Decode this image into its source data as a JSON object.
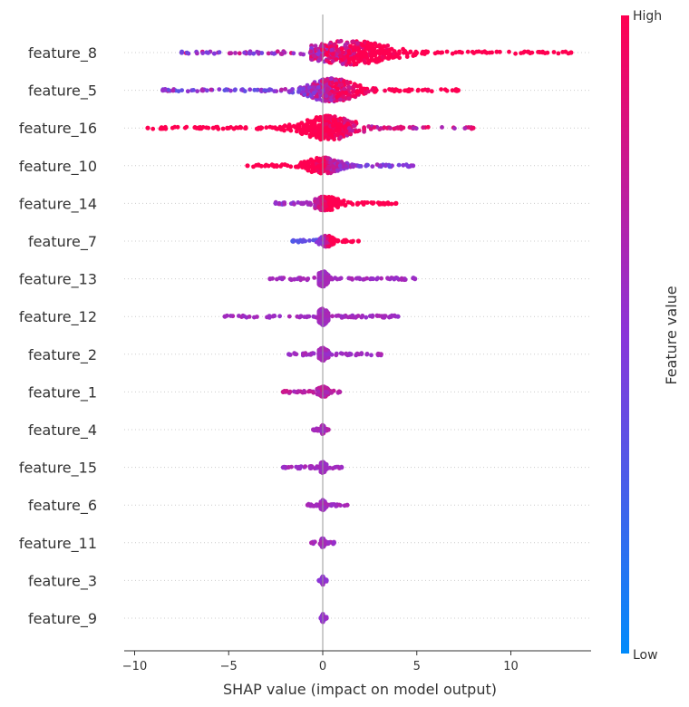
{
  "chart_data": {
    "type": "scatter",
    "subtype": "shap-beeswarm",
    "title": "",
    "xlabel": "SHAP value (impact on model output)",
    "ylabel": "",
    "xlim": [
      -10.4,
      14.2
    ],
    "xticks": [
      -10,
      -5,
      0,
      5,
      10
    ],
    "xtick_labels": [
      "−10",
      "−5",
      "0",
      "5",
      "10"
    ],
    "grid": false,
    "colorbar": {
      "label": "Feature value",
      "high_label": "High",
      "low_label": "Low",
      "low_color": "#008bfb",
      "mid_color": "#8a35d9",
      "high_color": "#ff0051"
    },
    "features": [
      {
        "name": "feature_8",
        "min": -7.5,
        "max": 13.2,
        "core_min": -0.6,
        "core_max": 5.0,
        "peak": 1.5,
        "spread": 2.6,
        "color_trend": 0.35,
        "color_base": 0.45,
        "color_noise": 0.25
      },
      {
        "name": "feature_5",
        "min": -8.5,
        "max": 7.2,
        "core_min": -2.0,
        "core_max": 2.8,
        "peak": 0.5,
        "spread": 1.5,
        "color_trend": 0.3,
        "color_base": 0.3,
        "color_noise": 0.2
      },
      {
        "name": "feature_16",
        "min": -9.3,
        "max": 8.0,
        "core_min": -2.2,
        "core_max": 2.2,
        "peak": 0.3,
        "spread": 1.6,
        "color_trend": -0.3,
        "color_base": 0.55,
        "color_noise": 0.2
      },
      {
        "name": "feature_10",
        "min": -4.0,
        "max": 4.8,
        "core_min": -1.2,
        "core_max": 1.5,
        "peak": 0.0,
        "spread": 1.0,
        "color_trend": -0.4,
        "color_base": 0.4,
        "color_noise": 0.15
      },
      {
        "name": "feature_14",
        "min": -2.5,
        "max": 3.9,
        "core_min": -0.4,
        "core_max": 1.2,
        "peak": 0.2,
        "spread": 0.8,
        "color_trend": 0.45,
        "color_base": 0.5,
        "color_noise": 0.1
      },
      {
        "name": "feature_7",
        "min": -1.6,
        "max": 1.9,
        "core_min": -0.2,
        "core_max": 0.6,
        "peak": 0.2,
        "spread": 0.4,
        "color_trend": 0.45,
        "color_base": 0.3,
        "color_noise": 0.1
      },
      {
        "name": "feature_13",
        "min": -2.8,
        "max": 4.9,
        "core_min": -0.2,
        "core_max": 0.3,
        "peak": 0.0,
        "spread": 0.3,
        "color_trend": 0.0,
        "color_base": 0.1,
        "color_noise": 0.05
      },
      {
        "name": "feature_12",
        "min": -5.2,
        "max": 4.0,
        "core_min": -0.2,
        "core_max": 0.3,
        "peak": 0.0,
        "spread": 0.3,
        "color_trend": 0.0,
        "color_base": 0.1,
        "color_noise": 0.05
      },
      {
        "name": "feature_2",
        "min": -1.8,
        "max": 3.1,
        "core_min": -0.2,
        "core_max": 0.3,
        "peak": 0.0,
        "spread": 0.3,
        "color_trend": 0.0,
        "color_base": 0.1,
        "color_noise": 0.05
      },
      {
        "name": "feature_1",
        "min": -2.1,
        "max": 0.9,
        "core_min": -0.3,
        "core_max": 0.3,
        "peak": 0.0,
        "spread": 0.3,
        "color_trend": 0.0,
        "color_base": 0.2,
        "color_noise": 0.1
      },
      {
        "name": "feature_4",
        "min": -0.5,
        "max": 0.3,
        "core_min": -0.1,
        "core_max": 0.2,
        "peak": 0.0,
        "spread": 0.1,
        "color_trend": 0.0,
        "color_base": 0.15,
        "color_noise": 0.1
      },
      {
        "name": "feature_15",
        "min": -2.1,
        "max": 1.0,
        "core_min": -0.1,
        "core_max": 0.2,
        "peak": 0.0,
        "spread": 0.2,
        "color_trend": 0.0,
        "color_base": 0.1,
        "color_noise": 0.05
      },
      {
        "name": "feature_6",
        "min": -0.8,
        "max": 1.3,
        "core_min": -0.1,
        "core_max": 0.2,
        "peak": 0.0,
        "spread": 0.15,
        "color_trend": 0.0,
        "color_base": 0.1,
        "color_noise": 0.05
      },
      {
        "name": "feature_11",
        "min": -0.6,
        "max": 0.6,
        "core_min": -0.1,
        "core_max": 0.1,
        "peak": 0.0,
        "spread": 0.1,
        "color_trend": 0.0,
        "color_base": 0.1,
        "color_noise": 0.05
      },
      {
        "name": "feature_3",
        "min": -0.2,
        "max": 0.2,
        "core_min": -0.05,
        "core_max": 0.1,
        "peak": 0.0,
        "spread": 0.05,
        "color_trend": 0.0,
        "color_base": 0.05,
        "color_noise": 0.05
      },
      {
        "name": "feature_9",
        "min": -0.1,
        "max": 0.2,
        "core_min": -0.05,
        "core_max": 0.1,
        "peak": 0.0,
        "spread": 0.05,
        "color_trend": 0.0,
        "color_base": 0.05,
        "color_noise": 0.05
      }
    ]
  }
}
